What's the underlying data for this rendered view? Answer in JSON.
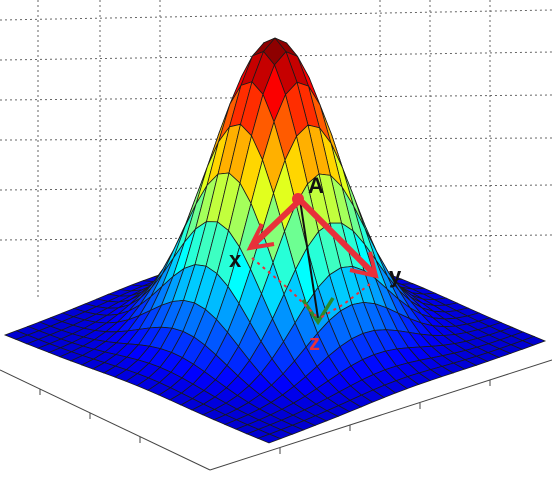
{
  "labels": {
    "point": "A",
    "x_axis": "x",
    "y_axis": "y",
    "z_axis": "z"
  },
  "colors": {
    "axis_x": "#e8303a",
    "axis_y": "#e8303a",
    "axis_z_arrow": "#1f7a1f",
    "axis_z_label": "#e8303a",
    "point": "#e8303a",
    "mesh_line": "#1a1a1a",
    "grid": "#555555"
  },
  "surface": {
    "type": "gaussian",
    "colormap": "jet"
  }
}
